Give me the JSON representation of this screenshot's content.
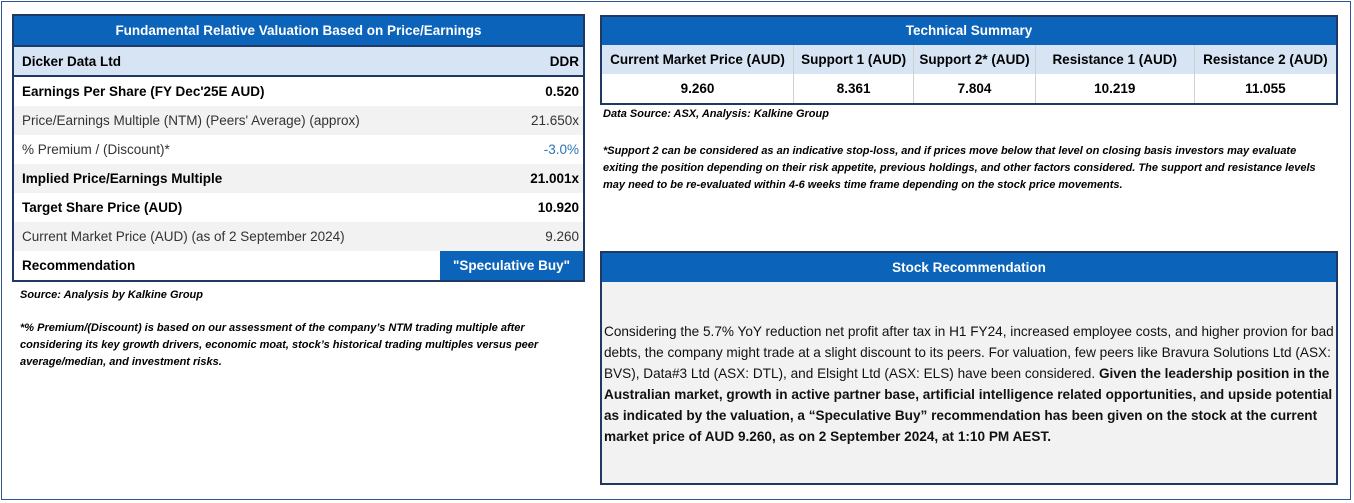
{
  "valuation": {
    "title": "Fundamental Relative Valuation Based on Price/Earnings",
    "company": "Dicker Data Ltd",
    "ticker": "DDR",
    "rows": [
      {
        "label": "Earnings Per Share (FY Dec'25E AUD)",
        "value": "0.520"
      },
      {
        "label": "Price/Earnings Multiple (NTM) (Peers' Average) (approx)",
        "value": "21.650x"
      },
      {
        "label": "% Premium / (Discount)*",
        "value": "-3.0%"
      },
      {
        "label": "Implied Price/Earnings Multiple",
        "value": "21.001x"
      },
      {
        "label": "Target Share Price (AUD)",
        "value": "10.920"
      },
      {
        "label": "Current Market Price (AUD) (as of 2 September 2024)",
        "value": "9.260"
      }
    ],
    "recommendation_label": "Recommendation",
    "recommendation_value": "\"Speculative Buy\"",
    "source": "Source: Analysis by Kalkine Group",
    "footnote": "*% Premium/(Discount) is based on our assessment of the company’s NTM trading multiple after considering its key growth drivers, economic moat, stock’s historical trading multiples versus peer average/median, and investment risks."
  },
  "technical": {
    "title": "Technical Summary",
    "headers": [
      "Current Market Price (AUD)",
      "Support 1 (AUD)",
      "Support 2* (AUD)",
      "Resistance 1 (AUD)",
      "Resistance 2 (AUD)"
    ],
    "values": [
      "9.260",
      "8.361",
      "7.804",
      "10.219",
      "11.055"
    ],
    "source": "Data Source: ASX, Analysis: Kalkine Group",
    "note": "*Support 2 can be considered as an indicative stop-loss, and if prices move below that level on closing basis investors may evaluate exiting the position depending on their risk appetite, previous holdings, and other factors considered. The support and resistance levels may need to be re-evaluated within 4-6 weeks time frame depending on the stock price movements."
  },
  "stock_recommendation": {
    "title": "Stock Recommendation",
    "text_plain": "Considering the 5.7% YoY reduction net profit after tax in H1 FY24, increased employee costs, and higher provion for bad debts, the company might trade at a slight discount to its peers. For valuation, few peers like Bravura Solutions Ltd (ASX: BVS), Data#3 Ltd (ASX: DTL), and Elsight Ltd (ASX: ELS) have been considered. ",
    "text_bold": "Given the leadership position in the Australian market, growth in active partner base, artificial intelligence related opportunities, and upside potential as indicated by the valuation, a “Speculative Buy” recommendation has been given on the stock at the current market price of AUD 9.260, as on 2 September 2024, at 1:10 PM AEST."
  }
}
